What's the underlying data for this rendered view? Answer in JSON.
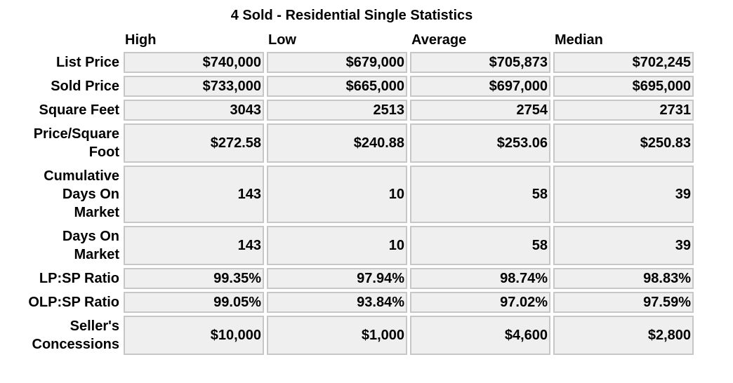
{
  "title": "4 Sold - Residential Single Statistics",
  "columns": [
    "High",
    "Low",
    "Average",
    "Median"
  ],
  "rows": [
    {
      "label": "List Price",
      "values": [
        "$740,000",
        "$679,000",
        "$705,873",
        "$702,245"
      ]
    },
    {
      "label": "Sold Price",
      "values": [
        "$733,000",
        "$665,000",
        "$697,000",
        "$695,000"
      ]
    },
    {
      "label": "Square Feet",
      "values": [
        "3043",
        "2513",
        "2754",
        "2731"
      ]
    },
    {
      "label": "Price/Square Foot",
      "values": [
        "$272.58",
        "$240.88",
        "$253.06",
        "$250.83"
      ]
    },
    {
      "label": "Cumulative Days On Market",
      "values": [
        "143",
        "10",
        "58",
        "39"
      ]
    },
    {
      "label": "Days On Market",
      "values": [
        "143",
        "10",
        "58",
        "39"
      ]
    },
    {
      "label": "LP:SP Ratio",
      "values": [
        "99.35%",
        "97.94%",
        "98.74%",
        "98.83%"
      ]
    },
    {
      "label": "OLP:SP Ratio",
      "values": [
        "99.05%",
        "93.84%",
        "97.02%",
        "97.59%"
      ]
    },
    {
      "label": "Seller's Concessions",
      "values": [
        "$10,000",
        "$1,000",
        "$4,600",
        "$2,800"
      ]
    }
  ]
}
